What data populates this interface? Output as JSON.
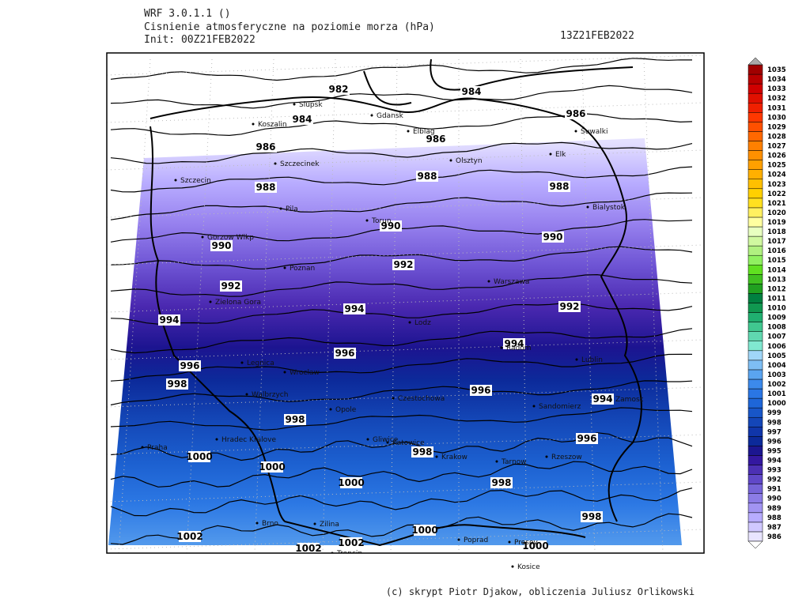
{
  "header": {
    "model": "WRF 3.0.1.1 ()",
    "title": "Cisnienie atmosferyczne na poziomie morza (hPa)",
    "init": "Init: 00Z21FEB2022",
    "valid": "13Z21FEB2022"
  },
  "colorbar": {
    "levels": [
      986,
      987,
      988,
      989,
      990,
      991,
      992,
      993,
      994,
      995,
      996,
      997,
      998,
      999,
      1000,
      1001,
      1002,
      1003,
      1004,
      1005,
      1006,
      1007,
      1008,
      1009,
      1010,
      1011,
      1012,
      1013,
      1014,
      1015,
      1016,
      1017,
      1018,
      1019,
      1020,
      1021,
      1022,
      1023,
      1024,
      1025,
      1026,
      1027,
      1028,
      1029,
      1030,
      1031,
      1032,
      1033,
      1034,
      1035
    ]
  },
  "cities": [
    "Slupsk",
    "Gdansk",
    "Koszalin",
    "Elblag",
    "Suwalki",
    "Elk",
    "Olsztyn",
    "Szczecinek",
    "Szczecin",
    "Bialystok",
    "Pila",
    "Torun",
    "Gorzow Wlkp",
    "Poznan",
    "Warszawa",
    "Zielona Gora",
    "Lodz",
    "Radom",
    "Lublin",
    "Legnica",
    "Wroclaw",
    "Walbrzych",
    "Czestochowa",
    "Opole",
    "Sandomierz",
    "Zamosc",
    "Hradec Kralove",
    "Gliwice",
    "Katowice",
    "Praha",
    "Krakow",
    "Tarnow",
    "Rzeszow",
    "Brno",
    "Zilina",
    "Poprad",
    "Presov",
    "Trencin",
    "Kosice"
  ],
  "contour_labels": [
    982,
    984,
    984,
    986,
    986,
    986,
    988,
    988,
    988,
    990,
    990,
    990,
    992,
    992,
    992,
    994,
    994,
    994,
    994,
    996,
    996,
    996,
    996,
    998,
    998,
    998,
    998,
    998,
    1000,
    1000,
    1000,
    1000,
    1000,
    1002,
    1002,
    1002
  ],
  "footer": "(c) skrypt Piotr Djakow, obliczenia Juliusz Orlikowski"
}
